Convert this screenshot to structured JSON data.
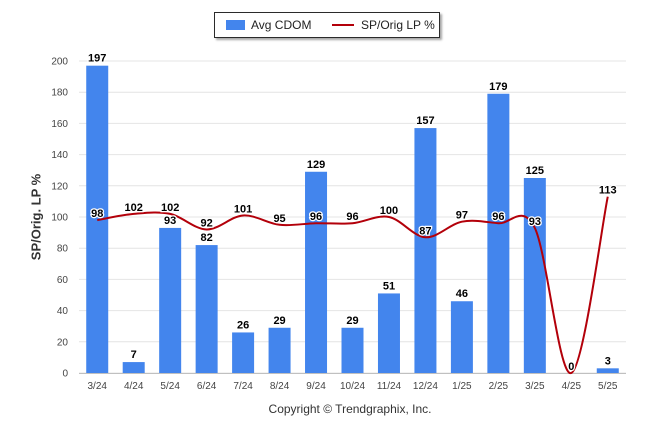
{
  "chart_data": {
    "type": "bar",
    "categories": [
      "3/24",
      "4/24",
      "5/24",
      "6/24",
      "7/24",
      "8/24",
      "9/24",
      "10/24",
      "11/24",
      "12/24",
      "1/25",
      "2/25",
      "3/25",
      "4/25",
      "5/25"
    ],
    "series": [
      {
        "name": "Avg CDOM",
        "type": "bar",
        "color": "#4385ed",
        "values": [
          197,
          7,
          93,
          82,
          26,
          29,
          129,
          29,
          51,
          157,
          46,
          179,
          125,
          0,
          3
        ]
      },
      {
        "name": "SP/Orig LP %",
        "type": "line",
        "color": "#b3000a",
        "values": [
          98,
          102,
          102,
          92,
          101,
          95,
          96,
          96,
          100,
          87,
          97,
          96,
          93,
          0,
          113
        ]
      }
    ],
    "ylabel": "SP/Orig. LP %",
    "ylim": [
      0,
      200
    ],
    "yticks": [
      0,
      20,
      40,
      60,
      80,
      100,
      120,
      140,
      160,
      180,
      200
    ],
    "grid": true,
    "legend_position": "top-center"
  },
  "legend": {
    "bar_label": "Avg CDOM",
    "line_label": "SP/Orig LP %"
  },
  "footer": {
    "credit": "Copyright © Trendgraphix, Inc."
  }
}
